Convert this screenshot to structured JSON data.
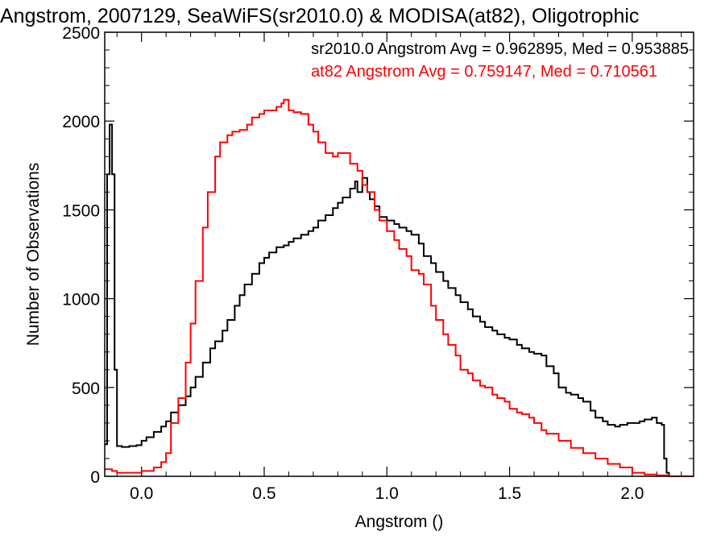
{
  "chart_data": {
    "type": "line",
    "step": true,
    "title": "Angstrom, 2007129, SeaWiFS(sr2010.0) & MODISA(at82), Oligotrophic",
    "xlabel": "Angstrom ()",
    "ylabel": "Number of Observations",
    "xlim": [
      -0.15,
      2.25
    ],
    "ylim": [
      0,
      2500
    ],
    "xticks": [
      {
        "value": 0.0,
        "label": "0.0"
      },
      {
        "value": 0.5,
        "label": "0.5"
      },
      {
        "value": 1.0,
        "label": "1.0"
      },
      {
        "value": 1.5,
        "label": "1.5"
      },
      {
        "value": 2.0,
        "label": "2.0"
      }
    ],
    "yticks": [
      {
        "value": 0,
        "label": "0"
      },
      {
        "value": 500,
        "label": "500"
      },
      {
        "value": 1000,
        "label": "1000"
      },
      {
        "value": 1500,
        "label": "1500"
      },
      {
        "value": 2000,
        "label": "2000"
      },
      {
        "value": 2500,
        "label": "2500"
      }
    ],
    "grid": false,
    "legend_position": "top-right",
    "series": [
      {
        "name": "sr2010.0 Angstrom Avg = 0.962895, Med = 0.953885",
        "color": "#000000",
        "x": [
          -0.15,
          -0.14,
          -0.13,
          -0.12,
          -0.11,
          -0.1,
          -0.08,
          -0.05,
          -0.02,
          0.0,
          0.02,
          0.05,
          0.08,
          0.1,
          0.12,
          0.15,
          0.18,
          0.2,
          0.22,
          0.25,
          0.28,
          0.3,
          0.33,
          0.35,
          0.38,
          0.4,
          0.42,
          0.45,
          0.48,
          0.5,
          0.52,
          0.55,
          0.58,
          0.6,
          0.62,
          0.65,
          0.68,
          0.7,
          0.72,
          0.75,
          0.78,
          0.8,
          0.82,
          0.85,
          0.87,
          0.88,
          0.9,
          0.92,
          0.93,
          0.95,
          0.97,
          1.0,
          1.03,
          1.05,
          1.08,
          1.1,
          1.13,
          1.15,
          1.18,
          1.2,
          1.23,
          1.25,
          1.28,
          1.3,
          1.33,
          1.35,
          1.38,
          1.4,
          1.43,
          1.45,
          1.48,
          1.5,
          1.53,
          1.55,
          1.58,
          1.6,
          1.63,
          1.65,
          1.68,
          1.7,
          1.73,
          1.75,
          1.78,
          1.8,
          1.83,
          1.85,
          1.88,
          1.9,
          1.93,
          1.95,
          1.98,
          2.0,
          2.03,
          2.05,
          2.08,
          2.1,
          2.12,
          2.13,
          2.14,
          2.15,
          2.2,
          2.25
        ],
        "y": [
          180,
          1700,
          1980,
          1700,
          600,
          170,
          165,
          170,
          175,
          200,
          220,
          250,
          280,
          310,
          360,
          400,
          450,
          500,
          560,
          640,
          720,
          760,
          820,
          880,
          960,
          1020,
          1080,
          1140,
          1200,
          1230,
          1260,
          1290,
          1300,
          1320,
          1340,
          1360,
          1380,
          1400,
          1440,
          1470,
          1510,
          1540,
          1570,
          1620,
          1660,
          1600,
          1680,
          1600,
          1560,
          1520,
          1460,
          1440,
          1420,
          1400,
          1380,
          1360,
          1310,
          1240,
          1200,
          1150,
          1100,
          1060,
          1020,
          980,
          940,
          900,
          870,
          840,
          820,
          800,
          780,
          770,
          740,
          720,
          700,
          690,
          680,
          620,
          580,
          500,
          470,
          460,
          440,
          420,
          370,
          330,
          310,
          290,
          280,
          290,
          300,
          300,
          310,
          320,
          330,
          300,
          290,
          100,
          20,
          0,
          0,
          0
        ]
      },
      {
        "name": "at82 Angstrom Avg = 0.759147, Med = 0.710561",
        "color": "#ff0000",
        "x": [
          -0.15,
          -0.12,
          -0.1,
          -0.05,
          0.0,
          0.05,
          0.08,
          0.1,
          0.12,
          0.15,
          0.18,
          0.2,
          0.22,
          0.25,
          0.27,
          0.3,
          0.32,
          0.35,
          0.37,
          0.4,
          0.43,
          0.45,
          0.48,
          0.5,
          0.52,
          0.55,
          0.57,
          0.58,
          0.6,
          0.62,
          0.65,
          0.68,
          0.7,
          0.72,
          0.75,
          0.78,
          0.8,
          0.82,
          0.85,
          0.88,
          0.9,
          0.92,
          0.95,
          0.97,
          1.0,
          1.03,
          1.05,
          1.08,
          1.1,
          1.13,
          1.15,
          1.18,
          1.2,
          1.23,
          1.25,
          1.28,
          1.3,
          1.33,
          1.35,
          1.38,
          1.4,
          1.43,
          1.45,
          1.48,
          1.5,
          1.53,
          1.55,
          1.58,
          1.6,
          1.63,
          1.65,
          1.7,
          1.75,
          1.8,
          1.85,
          1.9,
          1.95,
          2.0,
          2.05,
          2.1,
          2.15,
          2.25
        ],
        "y": [
          40,
          30,
          20,
          20,
          30,
          50,
          80,
          130,
          300,
          440,
          640,
          860,
          1100,
          1400,
          1600,
          1800,
          1880,
          1920,
          1940,
          1950,
          1980,
          2020,
          2040,
          2060,
          2060,
          2080,
          2100,
          2120,
          2060,
          2050,
          2040,
          1980,
          1940,
          1880,
          1820,
          1800,
          1820,
          1820,
          1760,
          1720,
          1640,
          1600,
          1500,
          1440,
          1380,
          1330,
          1280,
          1240,
          1160,
          1140,
          1080,
          960,
          880,
          800,
          740,
          680,
          600,
          580,
          540,
          510,
          500,
          460,
          440,
          420,
          380,
          360,
          350,
          330,
          300,
          260,
          240,
          200,
          160,
          130,
          100,
          70,
          50,
          20,
          10,
          5,
          0,
          0
        ]
      }
    ]
  }
}
